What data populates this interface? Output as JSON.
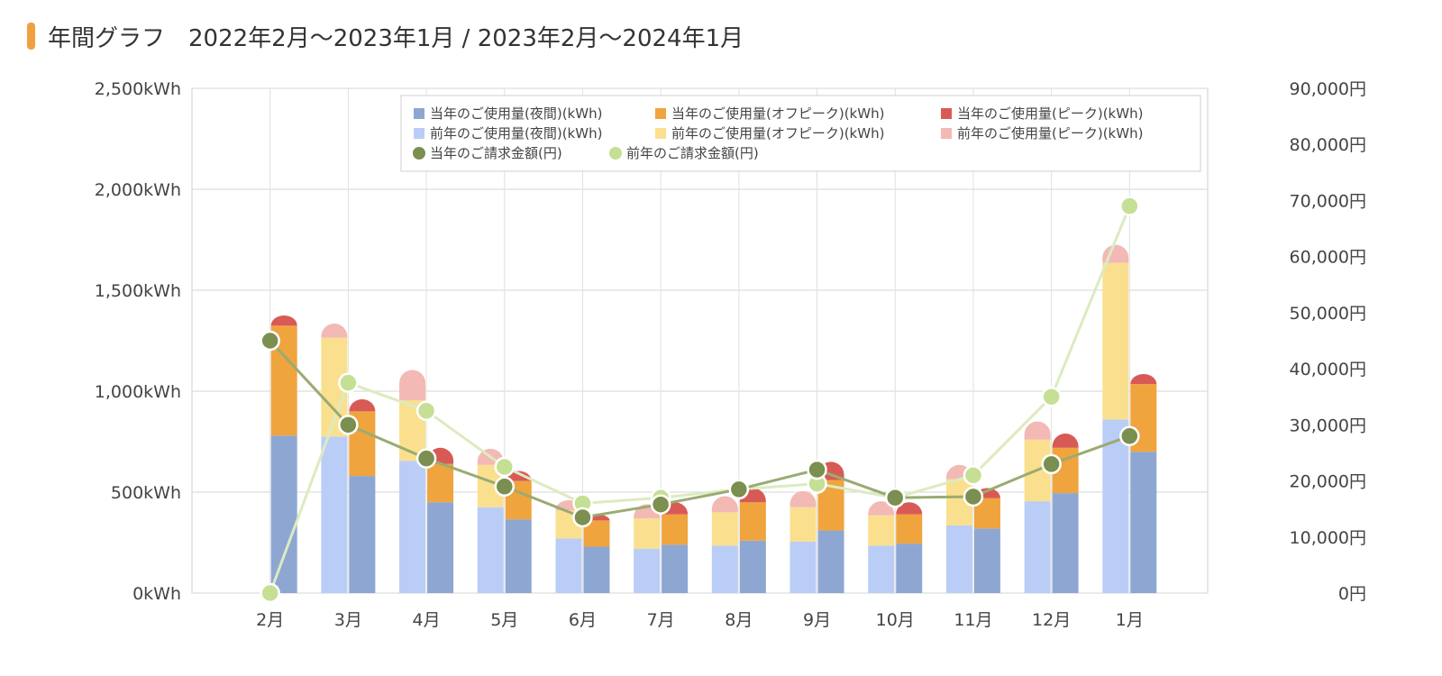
{
  "header": {
    "title": "年間グラフ　2022年2月～2023年1月 / 2023年2月～2024年1月"
  },
  "colors": {
    "title_marker": "#f0a040",
    "cur_night": "#8ea6d2",
    "cur_off": "#efa43e",
    "cur_peak": "#d85a55",
    "prev_night": "#bacdf6",
    "prev_off": "#fae08e",
    "prev_peak": "#f2b9b5",
    "cur_cost": "#7a8f50",
    "prev_cost": "#c5df95",
    "prev_cost_line": "#dcebc0"
  },
  "chart_data": {
    "type": "bar",
    "categories": [
      "2月",
      "3月",
      "4月",
      "5月",
      "6月",
      "7月",
      "8月",
      "9月",
      "10月",
      "11月",
      "12月",
      "1月"
    ],
    "series": [
      {
        "name": "当年のご使用量(夜間)(kWh)",
        "stack": "current",
        "axis": "left",
        "values": [
          780,
          580,
          450,
          365,
          230,
          240,
          260,
          310,
          245,
          320,
          495,
          700
        ]
      },
      {
        "name": "当年のご使用量(オフピーク)(kWh)",
        "stack": "current",
        "axis": "left",
        "values": [
          545,
          320,
          190,
          190,
          130,
          150,
          190,
          250,
          145,
          150,
          225,
          335
        ]
      },
      {
        "name": "当年のご使用量(ピーク)(kWh)",
        "stack": "current",
        "axis": "left",
        "values": [
          50,
          60,
          80,
          50,
          30,
          60,
          70,
          90,
          60,
          50,
          70,
          50
        ]
      },
      {
        "name": "前年のご使用量(夜間)(kWh)",
        "stack": "previous",
        "axis": "left",
        "values": [
          0,
          775,
          655,
          425,
          270,
          220,
          235,
          255,
          235,
          335,
          455,
          860
        ]
      },
      {
        "name": "前年のご使用量(オフピーク)(kWh)",
        "stack": "previous",
        "axis": "left",
        "values": [
          0,
          490,
          300,
          210,
          140,
          150,
          165,
          170,
          150,
          230,
          305,
          775
        ]
      },
      {
        "name": "前年のご使用量(ピーク)(kWh)",
        "stack": "previous",
        "axis": "left",
        "values": [
          0,
          70,
          150,
          80,
          50,
          70,
          80,
          80,
          70,
          70,
          90,
          90
        ]
      },
      {
        "name": "当年のご請求金額(円)",
        "type": "line",
        "axis": "right",
        "values": [
          45000,
          30000,
          24000,
          19000,
          13500,
          15800,
          18500,
          22000,
          17000,
          17200,
          23000,
          28000
        ]
      },
      {
        "name": "前年のご請求金額(円)",
        "type": "line",
        "axis": "right",
        "values": [
          0,
          37500,
          32500,
          22500,
          16000,
          17000,
          18500,
          19500,
          17000,
          21000,
          35000,
          69000
        ]
      }
    ],
    "y_left": {
      "ticks": [
        "2,500kWh",
        "2,000kWh",
        "1,500kWh",
        "1,000kWh",
        "500kWh",
        "0kWh"
      ],
      "min": 0,
      "max": 2500
    },
    "y_right": {
      "ticks": [
        "90,000円",
        "80,000円",
        "70,000円",
        "60,000円",
        "50,000円",
        "40,000円",
        "30,000円",
        "20,000円",
        "10,000円",
        "0円"
      ],
      "min": 0,
      "max": 90000
    },
    "grid": true,
    "legend_position": "top-right"
  }
}
